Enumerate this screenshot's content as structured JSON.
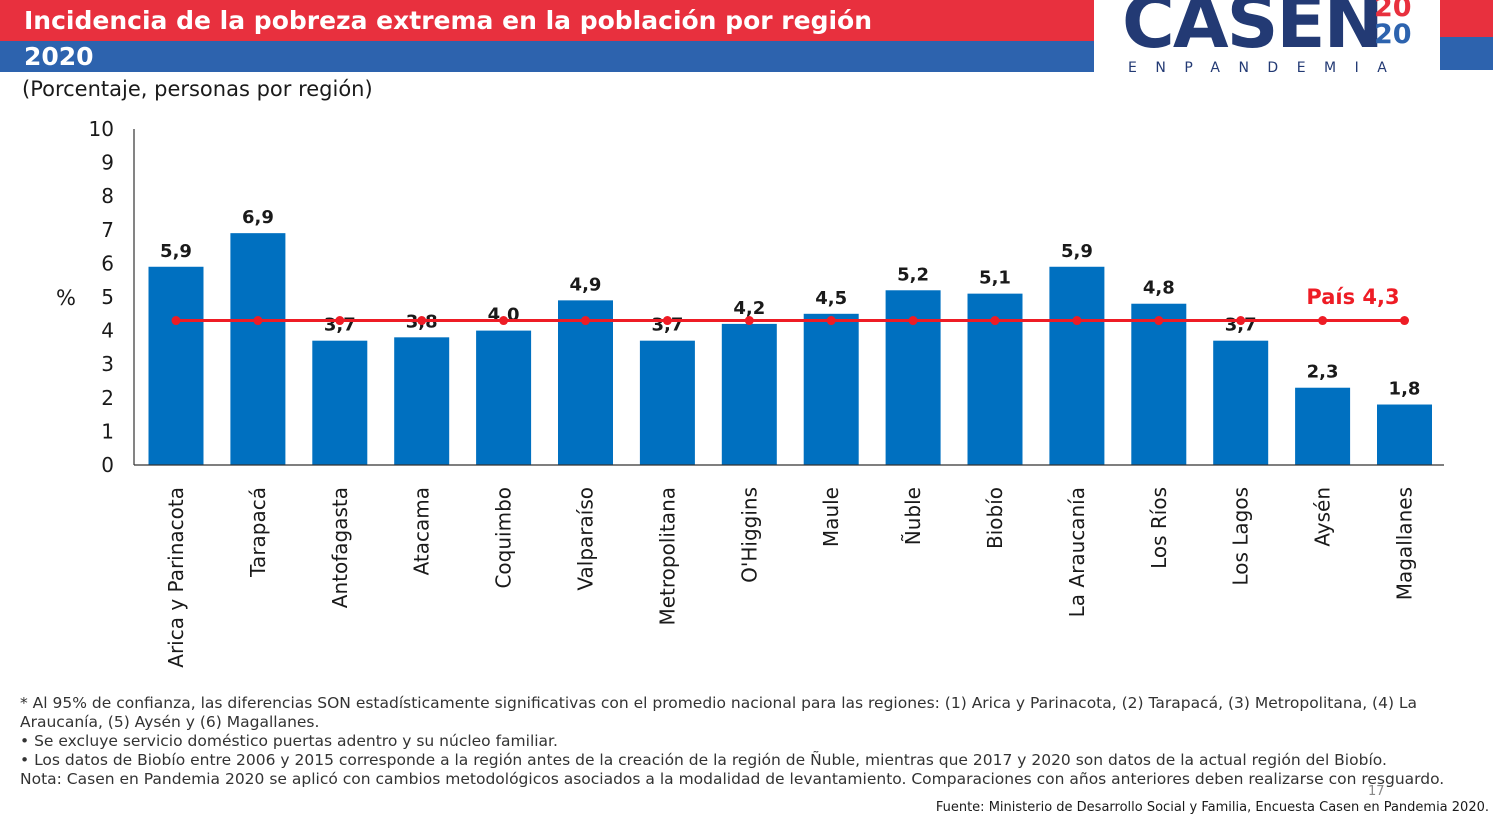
{
  "header": {
    "title": "Incidencia de la pobreza extrema en la población por región",
    "subtitle": "2020",
    "units": "(Porcentaje, personas por región)"
  },
  "logo": {
    "word": "CASEN",
    "year_top": "20",
    "year_bottom": "20",
    "sub": "ENPANDEMIA"
  },
  "colors": {
    "bar": "#0070c0",
    "reference_line": "#ee1c25",
    "header_red": "#e8303e",
    "header_blue": "#2d63ae"
  },
  "chart_data": {
    "type": "bar",
    "categories": [
      "Arica y Parinacota",
      "Tarapacá",
      "Antofagasta",
      "Atacama",
      "Coquimbo",
      "Valparaíso",
      "Metropolitana",
      "O'Higgins",
      "Maule",
      "Ñuble",
      "Biobío",
      "La Araucanía",
      "Los Ríos",
      "Los Lagos",
      "Aysén",
      "Magallanes"
    ],
    "values": [
      5.9,
      6.9,
      3.7,
      3.8,
      4.0,
      4.9,
      3.7,
      4.2,
      4.5,
      5.2,
      5.1,
      5.9,
      4.8,
      3.7,
      2.3,
      1.8
    ],
    "value_labels": [
      "5,9",
      "6,9",
      "3,7",
      "3,8",
      "4,0",
      "4,9",
      "3,7",
      "4,2",
      "4,5",
      "5,2",
      "5,1",
      "5,9",
      "4,8",
      "3,7",
      "2,3",
      "1,8"
    ],
    "ylabel": "%",
    "ylim": [
      0,
      10
    ],
    "yticks": [
      "0",
      "1",
      "2",
      "3",
      "4",
      "5",
      "6",
      "7",
      "8",
      "9",
      "10"
    ],
    "reference_line": {
      "value": 4.3,
      "label": "País 4,3"
    },
    "grid": false,
    "legend": "none"
  },
  "notes": [
    "* Al 95% de confianza, las diferencias SON estadísticamente significativas con el promedio nacional para las regiones: (1) Arica y Parinacota, (2) Tarapacá, (3) Metropolitana, (4) La Araucanía, (5) Aysén y (6) Magallanes.",
    "•   Se excluye servicio doméstico puertas adentro y su núcleo familiar.",
    "•   Los datos de Biobío entre 2006 y 2015 corresponde a la región antes de la creación de la región de Ñuble, mientras que 2017 y 2020 son datos de la actual región del Biobío.",
    "Nota: Casen en Pandemia 2020 se aplicó con cambios metodológicos asociados a la modalidad de levantamiento. Comparaciones con años anteriores deben realizarse con resguardo."
  ],
  "source": "Fuente: Ministerio de Desarrollo Social y Familia, Encuesta Casen en Pandemia 2020.",
  "page_number": "17"
}
